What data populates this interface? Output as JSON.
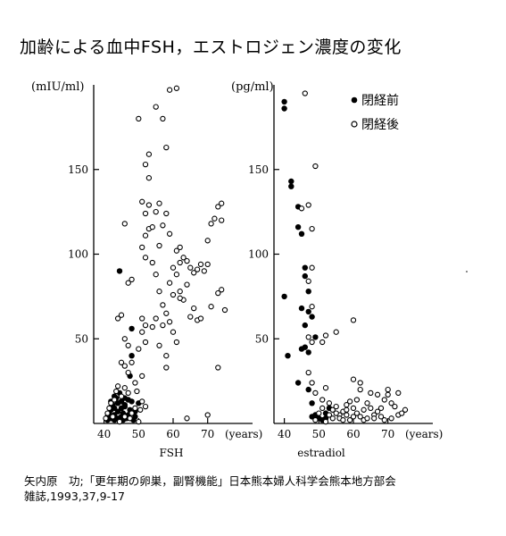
{
  "title": "加齢による血中FSH，エストロジェン濃度の変化",
  "citation": {
    "line1": "矢内原　功;「更年期の卵巣，副腎機能」日本熊本婦人科学会熊本地方部会",
    "line2": "雑誌,1993,37,9-17"
  },
  "chart_data": [
    {
      "type": "scatter",
      "title": "",
      "xlabel": "FSH",
      "ylabel": "(mIU/ml)",
      "x_unit": "(years)",
      "xlim": [
        37,
        83
      ],
      "ylim": [
        0,
        200
      ],
      "x_ticks": [
        40,
        50,
        60,
        70
      ],
      "y_ticks": [
        50,
        100,
        150
      ],
      "series": [
        {
          "name": "閉経前",
          "marker": "filled",
          "color": "#000000",
          "points": [
            [
              41,
              2
            ],
            [
              41,
              4
            ],
            [
              41.5,
              6
            ],
            [
              42,
              3
            ],
            [
              42,
              8
            ],
            [
              42.5,
              11
            ],
            [
              43,
              2
            ],
            [
              43,
              5
            ],
            [
              43,
              9
            ],
            [
              43.5,
              15
            ],
            [
              44,
              3
            ],
            [
              44,
              7
            ],
            [
              44,
              12
            ],
            [
              44.5,
              18
            ],
            [
              45,
              4
            ],
            [
              45,
              9
            ],
            [
              45,
              13
            ],
            [
              45.5,
              2
            ],
            [
              45.5,
              6
            ],
            [
              46,
              10
            ],
            [
              46,
              15
            ],
            [
              46.5,
              3
            ],
            [
              47,
              5
            ],
            [
              47,
              14
            ],
            [
              47.5,
              8
            ],
            [
              48,
              13
            ],
            [
              48.5,
              2
            ],
            [
              49,
              4
            ],
            [
              49,
              7
            ],
            [
              50,
              12
            ],
            [
              46,
              11
            ],
            [
              42,
              13
            ],
            [
              43,
              16
            ],
            [
              44.5,
              90
            ],
            [
              48,
              56
            ],
            [
              48,
              40
            ],
            [
              47.5,
              28
            ]
          ]
        },
        {
          "name": "閉経後",
          "marker": "open",
          "color": "#000000",
          "points": [
            [
              40.5,
              3
            ],
            [
              41,
              6
            ],
            [
              41.5,
              9
            ],
            [
              42,
              12
            ],
            [
              42.5,
              4
            ],
            [
              43,
              14
            ],
            [
              43.5,
              19
            ],
            [
              44,
              22
            ],
            [
              44.5,
              1
            ],
            [
              45,
              16
            ],
            [
              46,
              4
            ],
            [
              46,
              21
            ],
            [
              47,
              18
            ],
            [
              47.5,
              3
            ],
            [
              48,
              6
            ],
            [
              49,
              9
            ],
            [
              49.5,
              19
            ],
            [
              50,
              1
            ],
            [
              50.5,
              8
            ],
            [
              51,
              13
            ],
            [
              52,
              10
            ],
            [
              47,
              83
            ],
            [
              48,
              85
            ],
            [
              44,
              62
            ],
            [
              45,
              64
            ],
            [
              46,
              50
            ],
            [
              47,
              46
            ],
            [
              48,
              36
            ],
            [
              45,
              36
            ],
            [
              46,
              34
            ],
            [
              47,
              30
            ],
            [
              49,
              24
            ],
            [
              51,
              28
            ],
            [
              50,
              44
            ],
            [
              52,
              48
            ],
            [
              51,
              54
            ],
            [
              52,
              58
            ],
            [
              51,
              62
            ],
            [
              52,
              98
            ],
            [
              51,
              104
            ],
            [
              52,
              111
            ],
            [
              53,
              115
            ],
            [
              52,
              124
            ],
            [
              53,
              129
            ],
            [
              51,
              131
            ],
            [
              53,
              145
            ],
            [
              52,
              153
            ],
            [
              53,
              159
            ],
            [
              50,
              180
            ],
            [
              55,
              187
            ],
            [
              57,
              180
            ],
            [
              58,
              163
            ],
            [
              59,
              197
            ],
            [
              61,
              198
            ],
            [
              46,
              118
            ],
            [
              54,
              116
            ],
            [
              55,
              125
            ],
            [
              56,
              130
            ],
            [
              56,
              105
            ],
            [
              57,
              117
            ],
            [
              58,
              124
            ],
            [
              59,
              112
            ],
            [
              54,
              95
            ],
            [
              55,
              88
            ],
            [
              56,
              78
            ],
            [
              57,
              70
            ],
            [
              58,
              65
            ],
            [
              59,
              60
            ],
            [
              60,
              54
            ],
            [
              61,
              48
            ],
            [
              54,
              57
            ],
            [
              56,
              46
            ],
            [
              58,
              40
            ],
            [
              55,
              62
            ],
            [
              57,
              58
            ],
            [
              59,
              83
            ],
            [
              60,
              92
            ],
            [
              61,
              88
            ],
            [
              62,
              95
            ],
            [
              63,
              98
            ],
            [
              64,
              96
            ],
            [
              65,
              92
            ],
            [
              66,
              89
            ],
            [
              67,
              91
            ],
            [
              68,
              94
            ],
            [
              69,
              90
            ],
            [
              70,
              94
            ],
            [
              71,
              118
            ],
            [
              72,
              121
            ],
            [
              73,
              128
            ],
            [
              74,
              130
            ],
            [
              74,
              120
            ],
            [
              70,
              108
            ],
            [
              62,
              78
            ],
            [
              63,
              73
            ],
            [
              64,
              82
            ],
            [
              61,
              102
            ],
            [
              62,
              104
            ],
            [
              65,
              63
            ],
            [
              66,
              68
            ],
            [
              67,
              61
            ],
            [
              68,
              62
            ],
            [
              71,
              69
            ],
            [
              73,
              77
            ],
            [
              74,
              79
            ],
            [
              75,
              67
            ],
            [
              73,
              33
            ],
            [
              58,
              33
            ],
            [
              64,
              3
            ],
            [
              70,
              5
            ],
            [
              60,
              76
            ],
            [
              62,
              74
            ]
          ]
        }
      ]
    },
    {
      "type": "scatter",
      "title": "",
      "xlabel": "estradiol",
      "ylabel": "(pg/ml)",
      "x_unit": "(years)",
      "xlim": [
        37,
        83
      ],
      "ylim": [
        0,
        200
      ],
      "x_ticks": [
        40,
        50,
        60,
        70
      ],
      "y_ticks": [
        50,
        100,
        150
      ],
      "legend_position": "top-right",
      "series": [
        {
          "name": "閉経前",
          "marker": "filled",
          "color": "#000000",
          "points": [
            [
              40,
              190
            ],
            [
              40,
              186
            ],
            [
              42,
              143
            ],
            [
              42,
              140
            ],
            [
              44,
              128
            ],
            [
              44,
              116
            ],
            [
              45,
              112
            ],
            [
              46,
              92
            ],
            [
              46,
              87
            ],
            [
              47,
              78
            ],
            [
              40,
              75
            ],
            [
              45,
              68
            ],
            [
              47,
              66
            ],
            [
              48,
              63
            ],
            [
              46,
              58
            ],
            [
              46,
              45
            ],
            [
              47,
              42
            ],
            [
              45,
              44
            ],
            [
              41,
              40
            ],
            [
              49,
              51
            ],
            [
              44,
              24
            ],
            [
              47,
              20
            ],
            [
              48,
              12
            ],
            [
              49,
              5
            ],
            [
              50,
              3
            ],
            [
              51,
              2
            ],
            [
              52,
              6
            ],
            [
              53,
              9
            ],
            [
              52,
              3
            ],
            [
              48,
              4
            ]
          ]
        },
        {
          "name": "閉経後",
          "marker": "open",
          "color": "#000000",
          "points": [
            [
              46,
              195
            ],
            [
              47,
              129
            ],
            [
              45,
              127
            ],
            [
              48,
              115
            ],
            [
              49,
              152
            ],
            [
              48,
              92
            ],
            [
              47,
              84
            ],
            [
              48,
              69
            ],
            [
              47,
              51
            ],
            [
              48,
              48
            ],
            [
              51,
              48
            ],
            [
              52,
              52
            ],
            [
              55,
              54
            ],
            [
              60,
              61
            ],
            [
              47,
              30
            ],
            [
              48,
              24
            ],
            [
              49,
              18
            ],
            [
              51,
              14
            ],
            [
              52,
              21
            ],
            [
              53,
              12
            ],
            [
              54,
              8
            ],
            [
              55,
              10
            ],
            [
              56,
              5
            ],
            [
              57,
              7
            ],
            [
              58,
              11
            ],
            [
              59,
              13
            ],
            [
              60,
              9
            ],
            [
              61,
              6
            ],
            [
              62,
              4
            ],
            [
              63,
              8
            ],
            [
              64,
              12
            ],
            [
              65,
              9
            ],
            [
              66,
              5
            ],
            [
              67,
              7
            ],
            [
              68,
              9
            ],
            [
              69,
              14
            ],
            [
              70,
              17
            ],
            [
              71,
              12
            ],
            [
              72,
              10
            ],
            [
              73,
              5
            ],
            [
              74,
              6
            ],
            [
              75,
              8
            ],
            [
              62,
              24
            ],
            [
              60,
              26
            ],
            [
              62,
              20
            ],
            [
              65,
              18
            ],
            [
              67,
              17
            ],
            [
              70,
              20
            ],
            [
              73,
              18
            ],
            [
              71,
              3
            ],
            [
              69,
              2
            ],
            [
              54,
              3
            ],
            [
              52,
              1
            ],
            [
              56,
              3
            ],
            [
              58,
              5
            ],
            [
              59,
              2
            ],
            [
              60,
              4
            ],
            [
              50,
              6
            ],
            [
              51,
              9
            ],
            [
              53,
              5
            ],
            [
              57,
              2
            ],
            [
              63,
              2
            ],
            [
              66,
              3
            ],
            [
              49,
              2
            ],
            [
              55,
              6
            ],
            [
              58,
              8
            ],
            [
              61,
              14
            ],
            [
              64,
              3
            ],
            [
              68,
              4
            ]
          ]
        }
      ]
    }
  ]
}
